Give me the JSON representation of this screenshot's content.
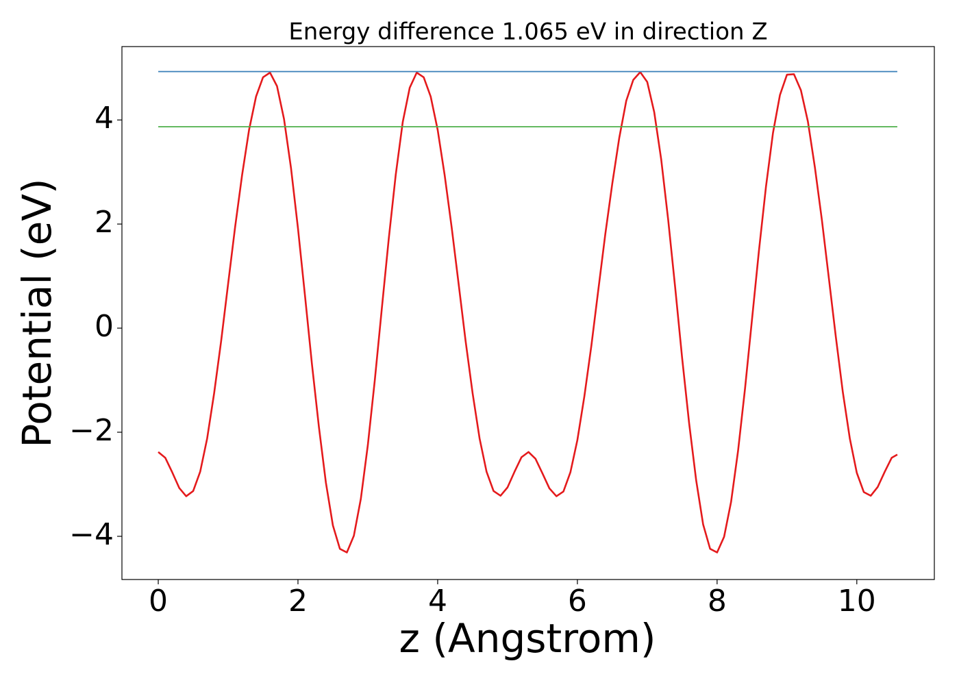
{
  "chart_data": {
    "type": "line",
    "title": "Energy difference 1.065 eV in direction Z",
    "x_label": "z (Angstrom)",
    "y_label": "Potential (eV)",
    "xlim": [
      -0.52,
      11.11
    ],
    "ylim": [
      -4.83,
      5.41
    ],
    "xticks": [
      0,
      2,
      4,
      6,
      8,
      10
    ],
    "yticks": [
      {
        "value": -4,
        "label": "−4"
      },
      {
        "value": -2,
        "label": "−2"
      },
      0,
      2,
      4
    ],
    "grid": false,
    "series": [
      {
        "color": "#e41a1c",
        "x": [
          0,
          0.1,
          0.2,
          0.3,
          0.4,
          0.5,
          0.6,
          0.7,
          0.8,
          0.9,
          1.0,
          1.1,
          1.2,
          1.3,
          1.4,
          1.5,
          1.6,
          1.7,
          1.8,
          1.9,
          2.0,
          2.1,
          2.2,
          2.3,
          2.4,
          2.5,
          2.6,
          2.7,
          2.8,
          2.9,
          3.0,
          3.1,
          3.2,
          3.3,
          3.4,
          3.5,
          3.6,
          3.7,
          3.8,
          3.9,
          4.0,
          4.1,
          4.2,
          4.3,
          4.4,
          4.5,
          4.6,
          4.7,
          4.8,
          4.9,
          5.0,
          5.1,
          5.2,
          5.3,
          5.4,
          5.5,
          5.6,
          5.7,
          5.8,
          5.9,
          6.0,
          6.1,
          6.2,
          6.3,
          6.4,
          6.5,
          6.6,
          6.7,
          6.8,
          6.9,
          7.0,
          7.1,
          7.2,
          7.3,
          7.4,
          7.5,
          7.6,
          7.7,
          7.8,
          7.9,
          8.0,
          8.1,
          8.2,
          8.3,
          8.4,
          8.5,
          8.6,
          8.7,
          8.8,
          8.9,
          9.0,
          9.1,
          9.2,
          9.3,
          9.4,
          9.5,
          9.6,
          9.7,
          9.8,
          9.9,
          10.0,
          10.1,
          10.2,
          10.3,
          10.4,
          10.5,
          10.58
        ],
        "values": [
          -2.38,
          -2.49,
          -2.77,
          -3.07,
          -3.23,
          -3.13,
          -2.76,
          -2.12,
          -1.25,
          -0.25,
          0.85,
          1.94,
          2.94,
          3.81,
          4.45,
          4.82,
          4.91,
          4.65,
          4.02,
          3.08,
          1.92,
          0.63,
          -0.69,
          -1.9,
          -2.97,
          -3.79,
          -4.24,
          -4.31,
          -3.99,
          -3.28,
          -2.25,
          -1.0,
          0.37,
          1.72,
          2.95,
          3.96,
          4.62,
          4.91,
          4.82,
          4.45,
          3.81,
          2.94,
          1.94,
          0.85,
          -0.25,
          -1.25,
          -2.12,
          -2.76,
          -3.13,
          -3.22,
          -3.06,
          -2.76,
          -2.48,
          -2.38,
          -2.51,
          -2.79,
          -3.08,
          -3.23,
          -3.14,
          -2.77,
          -2.15,
          -1.31,
          -0.34,
          0.74,
          1.81,
          2.78,
          3.66,
          4.37,
          4.77,
          4.92,
          4.73,
          4.15,
          3.24,
          2.08,
          0.78,
          -0.58,
          -1.83,
          -2.92,
          -3.77,
          -4.24,
          -4.31,
          -4.01,
          -3.34,
          -2.36,
          -1.16,
          0.17,
          1.5,
          2.72,
          3.75,
          4.48,
          4.87,
          4.88,
          4.57,
          3.97,
          3.09,
          2.08,
          0.96,
          -0.17,
          -1.23,
          -2.12,
          -2.78,
          -3.15,
          -3.22,
          -3.05,
          -2.76,
          -2.49,
          -2.43
        ]
      },
      {
        "color": "#377eb8",
        "x": [
          0,
          10.58
        ],
        "values": [
          4.93,
          4.93
        ]
      },
      {
        "color": "#4daf4a",
        "x": [
          0,
          10.58
        ],
        "values": [
          3.87,
          3.87
        ]
      }
    ]
  }
}
